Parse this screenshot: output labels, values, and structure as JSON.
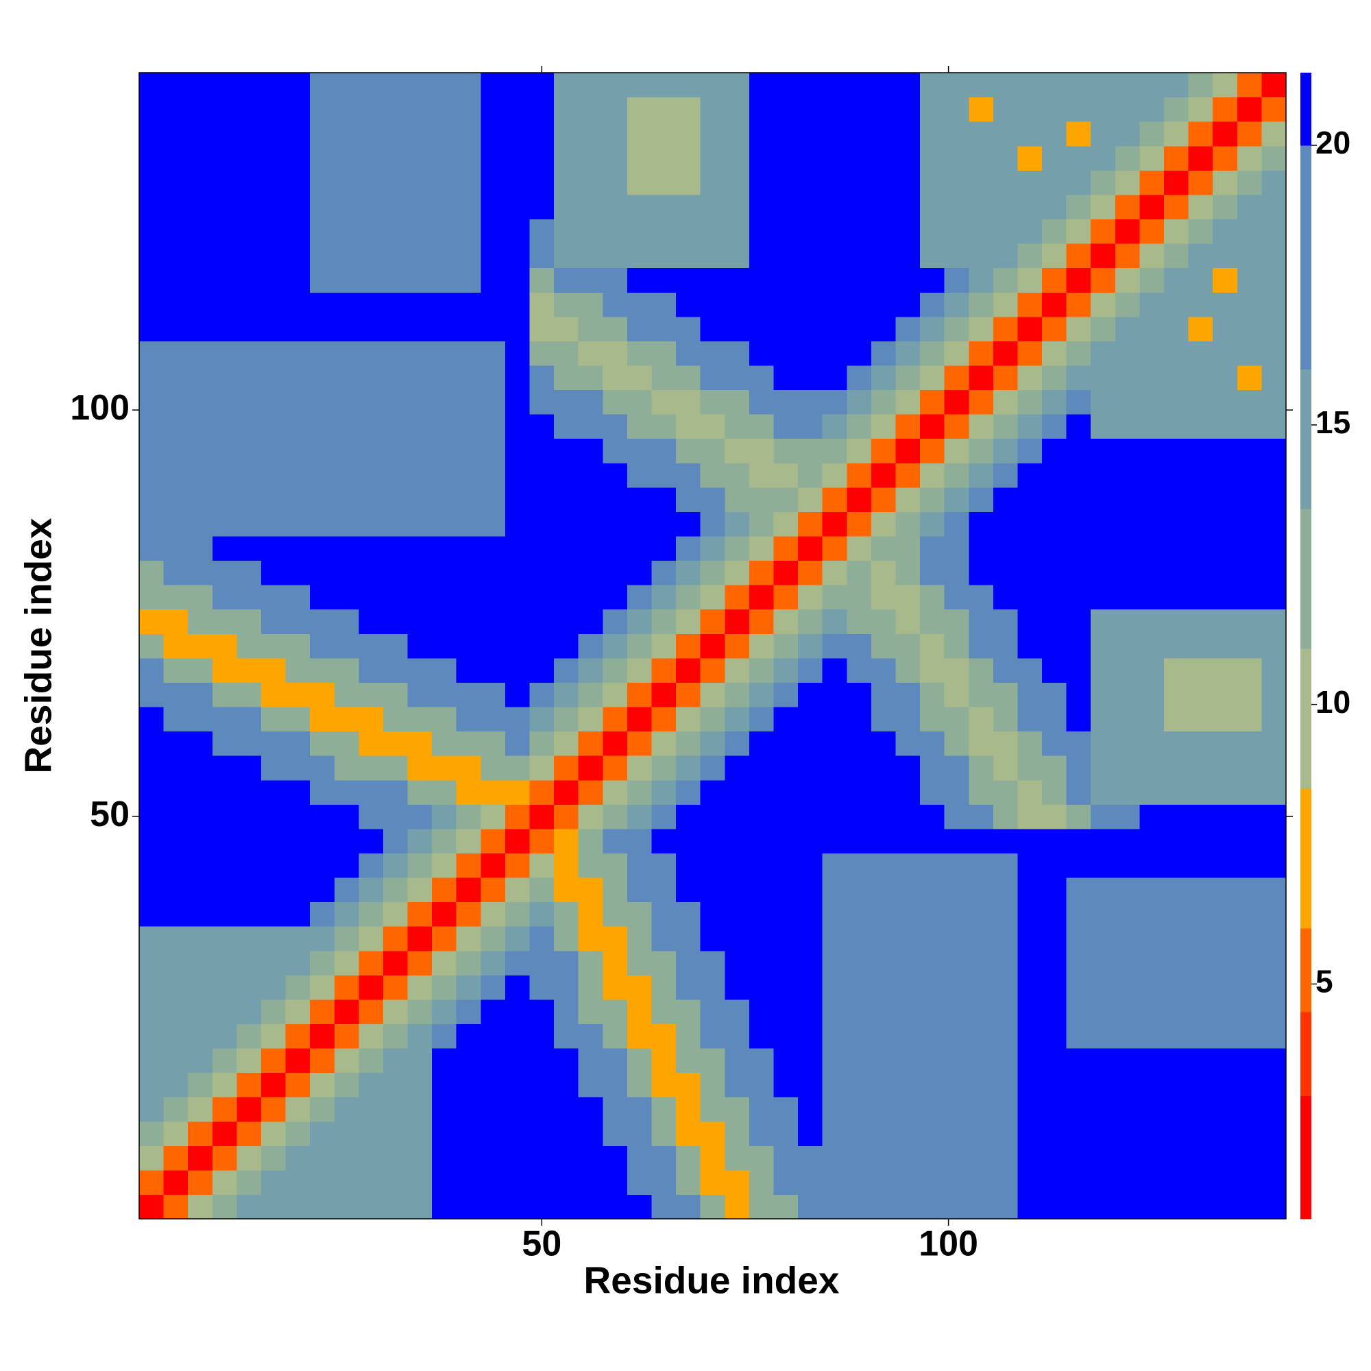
{
  "chart_data": {
    "type": "heatmap",
    "xlabel": "Residue index",
    "ylabel": "Residue index",
    "xlim": [
      0.5,
      141.5
    ],
    "ylim": [
      0.5,
      141.5
    ],
    "xticks": [
      50,
      100
    ],
    "yticks": [
      50,
      100
    ],
    "x": [
      2,
      5,
      8,
      11,
      14,
      17,
      20,
      23,
      26,
      29,
      32,
      35,
      38,
      41,
      44,
      47,
      50,
      53,
      56,
      59,
      62,
      65,
      68,
      71,
      74,
      77,
      80,
      83,
      86,
      89,
      92,
      95,
      98,
      101,
      104,
      107,
      110,
      113,
      116,
      119,
      122,
      125,
      128,
      131,
      134,
      137,
      140
    ],
    "y": [
      2,
      5,
      8,
      11,
      14,
      17,
      20,
      23,
      26,
      29,
      32,
      35,
      38,
      41,
      44,
      47,
      50,
      53,
      56,
      59,
      62,
      65,
      68,
      71,
      74,
      77,
      80,
      83,
      86,
      89,
      92,
      95,
      98,
      101,
      104,
      107,
      110,
      113,
      116,
      119,
      122,
      125,
      128,
      131,
      134,
      137,
      140
    ],
    "zlim": [
      0.8,
      21.3
    ],
    "zticks": [
      5,
      10,
      15,
      20
    ],
    "colorscale": [
      {
        "max": 3,
        "color": "#ff0000"
      },
      {
        "max": 4.5,
        "color": "#ff3300"
      },
      {
        "max": 6,
        "color": "#ff6600"
      },
      {
        "max": 8.5,
        "color": "#ffa500"
      },
      {
        "max": 11,
        "color": "#a8b98b"
      },
      {
        "max": 13.5,
        "color": "#8fae98"
      },
      {
        "max": 16,
        "color": "#75a0ab"
      },
      {
        "max": 20,
        "color": "#5d89bd"
      },
      {
        "max": 21.3,
        "color": "#0000ff"
      }
    ],
    "z": [
      [
        2,
        5,
        9,
        12,
        15,
        15,
        15,
        15,
        15,
        15,
        15,
        15,
        21,
        21,
        21,
        21,
        21,
        21,
        21,
        21,
        21,
        17,
        17,
        12,
        8,
        12,
        12,
        17,
        17,
        19,
        19,
        19,
        19,
        19,
        19,
        19,
        21,
        21,
        21,
        21,
        21,
        21,
        21,
        21,
        21,
        21,
        21
      ],
      [
        2,
        5,
        9,
        12,
        15,
        15,
        15,
        15,
        15,
        15,
        15,
        21,
        21,
        21,
        21,
        21,
        21,
        21,
        21,
        17,
        17,
        12,
        8,
        8,
        12,
        17,
        17,
        19,
        19,
        19,
        19,
        19,
        19,
        19,
        19,
        21,
        21,
        21,
        21,
        21,
        21,
        21,
        21,
        21,
        21,
        21
      ],
      [
        2,
        5,
        9,
        12,
        15,
        15,
        15,
        15,
        15,
        15,
        21,
        21,
        21,
        21,
        21,
        21,
        21,
        21,
        17,
        17,
        12,
        8,
        12,
        12,
        17,
        17,
        19,
        19,
        19,
        19,
        19,
        19,
        19,
        19,
        21,
        21,
        21,
        21,
        21,
        21,
        21,
        21,
        21,
        21,
        21
      ],
      [
        2,
        5,
        9,
        12,
        15,
        15,
        15,
        15,
        15,
        21,
        21,
        21,
        21,
        21,
        21,
        21,
        17,
        17,
        12,
        8,
        8,
        12,
        17,
        17,
        21,
        19,
        19,
        19,
        19,
        19,
        19,
        19,
        19,
        21,
        21,
        21,
        21,
        21,
        21,
        21,
        21,
        21,
        21,
        21
      ],
      [
        2,
        5,
        9,
        12,
        15,
        15,
        15,
        15,
        21,
        21,
        21,
        21,
        21,
        21,
        21,
        17,
        17,
        12,
        8,
        12,
        12,
        17,
        17,
        21,
        19,
        19,
        19,
        19,
        19,
        19,
        19,
        19,
        21,
        21,
        21,
        21,
        21,
        21,
        21,
        21,
        21,
        21,
        21
      ],
      [
        2,
        5,
        9,
        12,
        15,
        15,
        15,
        21,
        21,
        21,
        21,
        21,
        21,
        17,
        17,
        12,
        8,
        8,
        12,
        17,
        17,
        21,
        21,
        19,
        19,
        19,
        19,
        19,
        19,
        19,
        19,
        21,
        21,
        21,
        21,
        21,
        21,
        21,
        21,
        21,
        21,
        21
      ],
      [
        2,
        5,
        9,
        12,
        15,
        15,
        21,
        21,
        21,
        21,
        21,
        21,
        17,
        17,
        12,
        8,
        12,
        12,
        17,
        17,
        21,
        21,
        19,
        19,
        19,
        19,
        19,
        19,
        19,
        19,
        21,
        21,
        21,
        21,
        21,
        21,
        21,
        21,
        21,
        21,
        21
      ],
      [
        2,
        5,
        9,
        12,
        16,
        19,
        21,
        21,
        21,
        21,
        17,
        17,
        12,
        8,
        8,
        12,
        17,
        17,
        21,
        21,
        21,
        19,
        19,
        19,
        19,
        19,
        19,
        19,
        19,
        21,
        21,
        18,
        18,
        18,
        18,
        18,
        18,
        18,
        18,
        18
      ],
      [
        2,
        5,
        9,
        12,
        16,
        19,
        21,
        21,
        21,
        17,
        12,
        12,
        8,
        12,
        12,
        17,
        17,
        21,
        21,
        21,
        19,
        19,
        19,
        19,
        19,
        19,
        19,
        19,
        21,
        21,
        18,
        18,
        18,
        18,
        18,
        18,
        18,
        18,
        18
      ],
      [
        2,
        5,
        9,
        12,
        16,
        19,
        21,
        17,
        17,
        12,
        8,
        8,
        12,
        17,
        17,
        21,
        21,
        21,
        21,
        19,
        19,
        19,
        19,
        19,
        19,
        19,
        19,
        21,
        21,
        18,
        18,
        18,
        18,
        18,
        18,
        18,
        18,
        18
      ],
      [
        2,
        5,
        9,
        12,
        16,
        19,
        17,
        17,
        12,
        8,
        12,
        12,
        17,
        17,
        21,
        21,
        21,
        21,
        19,
        19,
        19,
        19,
        19,
        19,
        19,
        19,
        21,
        21,
        18,
        18,
        18,
        18,
        18,
        18,
        18,
        18,
        18
      ],
      [
        2,
        5,
        9,
        12,
        16,
        17,
        12,
        8,
        8,
        12,
        17,
        17,
        21,
        21,
        21,
        21,
        21,
        19,
        19,
        19,
        19,
        19,
        19,
        19,
        19,
        21,
        21,
        18,
        18,
        18,
        18,
        18,
        18,
        18,
        18,
        18
      ],
      [
        2,
        5,
        9,
        12,
        16,
        12,
        8,
        12,
        12,
        17,
        17,
        21,
        21,
        21,
        21,
        21,
        19,
        19,
        19,
        19,
        19,
        19,
        19,
        19,
        21,
        21,
        18,
        18,
        18,
        18,
        18,
        18,
        18,
        18,
        18
      ],
      [
        2,
        5,
        9,
        12,
        8,
        8,
        12,
        17,
        17,
        21,
        21,
        21,
        21,
        21,
        21,
        19,
        19,
        19,
        19,
        19,
        19,
        19,
        19,
        21,
        21,
        18,
        18,
        18,
        18,
        18,
        18,
        18,
        18,
        18
      ],
      [
        2,
        5,
        9,
        8,
        12,
        12,
        17,
        17,
        21,
        21,
        21,
        21,
        21,
        21,
        19,
        19,
        19,
        19,
        19,
        19,
        19,
        19,
        21,
        21,
        21,
        21,
        21,
        21,
        21,
        21,
        21,
        21,
        21
      ],
      [
        2,
        5,
        8,
        12,
        17,
        17,
        21,
        21,
        21,
        21,
        21,
        21,
        21,
        21,
        21,
        21,
        21,
        21,
        21,
        21,
        21,
        21,
        21,
        21,
        21,
        21,
        21,
        21,
        21,
        21,
        21,
        21
      ],
      [
        2,
        5,
        9,
        12,
        16,
        19,
        21,
        21,
        21,
        21,
        21,
        21,
        21,
        21,
        21,
        21,
        21,
        17,
        17,
        13,
        9,
        9,
        13,
        17,
        17,
        21,
        21,
        21,
        21,
        21,
        21
      ],
      [
        2,
        5,
        9,
        12,
        16,
        19,
        21,
        21,
        21,
        21,
        21,
        21,
        21,
        21,
        21,
        17,
        17,
        13,
        13,
        9,
        13,
        17,
        14,
        14,
        14,
        14,
        14,
        14,
        14,
        14
      ],
      [
        2,
        5,
        9,
        12,
        16,
        19,
        21,
        21,
        21,
        21,
        21,
        21,
        21,
        21,
        17,
        17,
        13,
        9,
        13,
        13,
        17,
        14,
        14,
        14,
        14,
        14,
        14,
        14,
        14
      ],
      [
        2,
        5,
        9,
        12,
        16,
        19,
        21,
        21,
        21,
        21,
        21,
        21,
        17,
        17,
        13,
        9,
        9,
        13,
        17,
        17,
        14,
        14,
        14,
        14,
        14,
        14,
        14,
        14
      ],
      [
        2,
        5,
        9,
        12,
        16,
        19,
        21,
        21,
        21,
        21,
        17,
        17,
        13,
        13,
        9,
        13,
        17,
        17,
        21,
        14,
        14,
        14,
        10,
        10,
        10,
        10,
        14
      ],
      [
        2,
        5,
        9,
        12,
        16,
        19,
        21,
        21,
        21,
        17,
        17,
        13,
        9,
        13,
        13,
        17,
        17,
        21,
        14,
        14,
        14,
        10,
        10,
        10,
        10,
        14
      ],
      [
        2,
        5,
        9,
        12,
        16,
        19,
        21,
        17,
        17,
        13,
        9,
        9,
        13,
        17,
        17,
        21,
        21,
        14,
        14,
        14,
        10,
        10,
        10,
        10,
        14
      ],
      [
        2,
        5,
        9,
        12,
        16,
        17,
        17,
        13,
        13,
        9,
        13,
        17,
        17,
        21,
        21,
        21,
        14,
        14,
        14,
        14,
        14,
        14,
        14,
        14
      ],
      [
        2,
        5,
        9,
        12,
        16,
        13,
        13,
        9,
        13,
        13,
        17,
        17,
        21,
        21,
        21,
        14,
        14,
        14,
        14,
        14,
        14,
        14,
        14
      ],
      [
        2,
        5,
        9,
        12,
        13,
        9,
        9,
        13,
        17,
        17,
        21,
        21,
        21,
        21,
        21,
        21,
        21,
        21,
        21,
        21,
        21,
        21
      ],
      [
        2,
        5,
        9,
        12,
        9,
        13,
        17,
        17,
        21,
        21,
        21,
        21,
        21,
        21,
        21,
        21,
        21,
        21,
        21,
        21,
        21
      ],
      [
        2,
        5,
        9,
        12,
        13,
        17,
        17,
        21,
        21,
        21,
        21,
        21,
        21,
        21,
        21,
        21,
        21,
        21,
        21,
        21
      ],
      [
        2,
        5,
        9,
        12,
        16,
        19,
        21,
        21,
        21,
        21,
        21,
        21,
        21,
        21,
        21,
        21,
        21,
        21,
        21
      ],
      [
        2,
        5,
        9,
        12,
        16,
        19,
        21,
        21,
        21,
        21,
        21,
        21,
        21,
        21,
        21,
        21,
        21,
        21
      ],
      [
        2,
        5,
        9,
        12,
        16,
        19,
        21,
        21,
        21,
        21,
        21,
        21,
        21,
        21,
        21,
        21,
        21
      ],
      [
        2,
        5,
        9,
        12,
        16,
        19,
        21,
        21,
        21,
        21,
        21,
        21,
        21,
        21,
        21,
        21
      ],
      [
        2,
        5,
        9,
        12,
        16,
        19,
        21,
        16,
        16,
        16,
        16,
        16,
        16,
        16,
        16
      ],
      [
        2,
        5,
        9,
        12,
        16,
        19,
        16,
        16,
        16,
        16,
        16,
        16,
        16,
        16
      ],
      [
        2,
        5,
        9,
        12,
        16,
        16,
        16,
        16,
        16,
        16,
        16,
        8,
        16
      ],
      [
        2,
        5,
        9,
        12,
        16,
        16,
        16,
        16,
        16,
        16,
        16,
        16
      ],
      [
        2,
        5,
        9,
        12,
        16,
        16,
        16,
        8,
        16,
        16,
        16
      ],
      [
        2,
        5,
        9,
        12,
        16,
        16,
        16,
        16,
        16,
        16
      ],
      [
        2,
        5,
        9,
        12,
        16,
        16,
        8,
        16,
        16
      ],
      [
        2,
        5,
        9,
        12,
        16,
        16,
        16,
        16
      ],
      [
        2,
        5,
        9,
        12,
        16,
        16,
        16
      ],
      [
        2,
        5,
        9,
        12,
        16,
        16
      ],
      [
        2,
        5,
        9,
        12,
        16
      ],
      [
        2,
        5,
        9,
        12
      ],
      [
        2,
        5,
        9
      ],
      [
        2,
        5
      ],
      [
        2
      ]
    ]
  }
}
